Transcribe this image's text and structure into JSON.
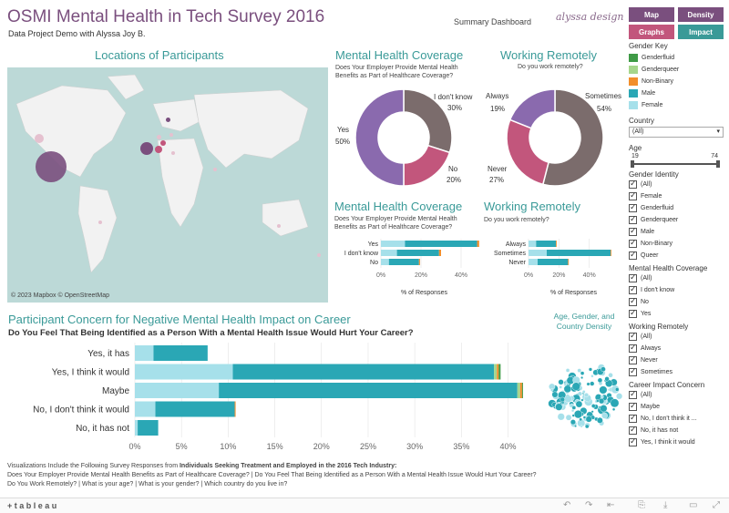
{
  "header": {
    "title": "OSMI Mental Health in Tech Survey 2016",
    "subtitle": "Data Project Demo with Alyssa Joy B.",
    "summary_label": "Summary Dashboard",
    "logo_text": "alyssa design"
  },
  "nav": {
    "map": "Map",
    "density": "Density",
    "graphs": "Graphs",
    "impact": "Impact",
    "colors": {
      "map": "#7a4f7e",
      "density": "#7a4f7e",
      "graphs": "#c2567c",
      "impact": "#3a9a98"
    }
  },
  "map": {
    "title": "Locations of Participants",
    "credit": "© 2023 Mapbox  © OpenStreetMap"
  },
  "coverage": {
    "title": "Mental Health Coverage",
    "question": "Does Your Employer Provide Mental Health Benefits as Part of Healthcare Coverage?",
    "labels": {
      "dk": "I don't know",
      "dk_pct": "30%",
      "yes": "Yes",
      "yes_pct": "50%",
      "no": "No",
      "no_pct": "20%"
    }
  },
  "remote": {
    "title": "Working Remotely",
    "question": "Do you work remotely?",
    "labels": {
      "always": "Always",
      "always_pct": "19%",
      "sometimes": "Sometimes",
      "sometimes_pct": "54%",
      "never": "Never",
      "never_pct": "27%"
    }
  },
  "coverage_bar": {
    "title": "Mental Health Coverage",
    "question": "Does Your Employer Provide Mental Health Benefits as Part of Healthcare Coverage?",
    "axis_title": "% of Responses",
    "ticks": [
      "0%",
      "20%",
      "40%"
    ]
  },
  "remote_bar": {
    "title": "Working Remotely",
    "question": "Do you work remotely?",
    "axis_title": "% of Responses",
    "ticks": [
      "0%",
      "20%",
      "40%"
    ]
  },
  "impact": {
    "title": "Participant Concern for Negative Mental Health Impact on Career",
    "question": "Do You Feel That Being Identified as a Person With a Mental Health Issue Would Hurt Your Career?",
    "ticks": [
      "0%",
      "5%",
      "10%",
      "15%",
      "20%",
      "25%",
      "30%",
      "35%",
      "40%"
    ]
  },
  "density": {
    "title": "Age, Gender, and Country Density"
  },
  "footer": {
    "line1_prefix": "Visualizations Include the Following Survey Responses from ",
    "line1_bold": "Individuals Seeking Treatment and Employed in the 2016 Tech Industry:",
    "line2": "Does Your Employer Provide Mental Health Benefits as Part of Healthcare Coverage?  |  Do You Feel That Being Identified as a Person With a Mental Health Issue Would Hurt Your Career?",
    "line3": "Do You Work Remotely?  |  What is your age?  |  What is your gender?  |  Which country do you live in?",
    "tableau": "+ t a b l e a u"
  },
  "filters": {
    "gender_key_title": "Gender Key",
    "gender_key": [
      {
        "label": "Genderfluid",
        "color": "#3f9a46"
      },
      {
        "label": "Genderqueer",
        "color": "#a6d68c"
      },
      {
        "label": "Non-Binary",
        "color": "#f28e2b"
      },
      {
        "label": "Male",
        "color": "#2aa7b5"
      },
      {
        "label": "Female",
        "color": "#a6e0ea"
      }
    ],
    "country_title": "Country",
    "country_value": "(All)",
    "age_title": "Age",
    "age_min": "19",
    "age_max": "74",
    "gender_identity_title": "Gender Identity",
    "gender_identity": [
      "(All)",
      "Female",
      "Genderfluid",
      "Genderqueer",
      "Male",
      "Non-Binary",
      "Queer"
    ],
    "coverage_title": "Mental Health Coverage",
    "coverage": [
      "(All)",
      "I don't know",
      "No",
      "Yes"
    ],
    "remote_title": "Working Remotely",
    "remote": [
      "(All)",
      "Always",
      "Never",
      "Sometimes"
    ],
    "career_title": "Career Impact Concern",
    "career": [
      "(All)",
      "Maybe",
      "No, I don't think it ...",
      "No, it has not",
      "Yes, I think it would"
    ]
  },
  "chart_data": [
    {
      "type": "pie",
      "title": "Mental Health Coverage",
      "categories": [
        "I don't know",
        "No",
        "Yes"
      ],
      "values": [
        30,
        20,
        50
      ],
      "colors": [
        "#7b6c6c",
        "#c2567c",
        "#8a6aae"
      ]
    },
    {
      "type": "pie",
      "title": "Working Remotely",
      "categories": [
        "Sometimes",
        "Never",
        "Always"
      ],
      "values": [
        54,
        27,
        19
      ],
      "colors": [
        "#7b6c6c",
        "#c2567c",
        "#8a6aae"
      ]
    },
    {
      "type": "bar",
      "title": "Mental Health Coverage",
      "categories": [
        "Yes",
        "I don't know",
        "No"
      ],
      "series": [
        {
          "name": "Female",
          "values": [
            12,
            8,
            4
          ],
          "color": "#a6e0ea"
        },
        {
          "name": "Male",
          "values": [
            36,
            21,
            15
          ],
          "color": "#2aa7b5"
        },
        {
          "name": "Non-Binary",
          "values": [
            1,
            1,
            0.5
          ],
          "color": "#f28e2b"
        }
      ],
      "xlabel": "% of Responses",
      "xlim": [
        0,
        50
      ]
    },
    {
      "type": "bar",
      "title": "Working Remotely",
      "categories": [
        "Always",
        "Sometimes",
        "Never"
      ],
      "series": [
        {
          "name": "Female",
          "values": [
            5,
            12,
            6
          ],
          "color": "#a6e0ea"
        },
        {
          "name": "Male",
          "values": [
            13,
            42,
            20
          ],
          "color": "#2aa7b5"
        },
        {
          "name": "Non-Binary",
          "values": [
            0.5,
            0.5,
            0.5
          ],
          "color": "#f28e2b"
        }
      ],
      "xlabel": "% of Responses",
      "xlim": [
        0,
        60
      ]
    },
    {
      "type": "bar",
      "title": "Participant Concern for Negative Mental Health Impact on Career",
      "categories": [
        "Yes, it has",
        "Yes, I think it would",
        "Maybe",
        "No, I don't think it would",
        "No, it has not"
      ],
      "series": [
        {
          "name": "Female",
          "values": [
            2,
            10.5,
            9,
            2.2,
            0.3
          ],
          "color": "#a6e0ea"
        },
        {
          "name": "Male",
          "values": [
            5.8,
            28,
            32,
            8.5,
            2.2
          ],
          "color": "#2aa7b5"
        },
        {
          "name": "Genderqueer",
          "values": [
            0,
            0.3,
            0.3,
            0,
            0
          ],
          "color": "#a6d68c"
        },
        {
          "name": "Non-Binary",
          "values": [
            0,
            0.2,
            0.2,
            0.1,
            0
          ],
          "color": "#f28e2b"
        },
        {
          "name": "Genderfluid",
          "values": [
            0,
            0.2,
            0.1,
            0,
            0
          ],
          "color": "#3f9a46"
        }
      ],
      "xlim": [
        0,
        42
      ]
    }
  ]
}
